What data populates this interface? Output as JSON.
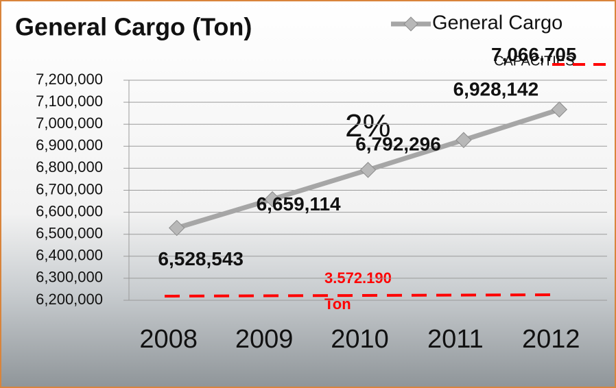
{
  "chart_data": {
    "type": "line",
    "title": "General Cargo (Ton)",
    "categories": [
      "2008",
      "2009",
      "2010",
      "2011",
      "2012"
    ],
    "series": [
      {
        "name": "General Cargo",
        "color": "#a6a6a6",
        "values": [
          6528543,
          6659114,
          6792296,
          6928142,
          7066705
        ],
        "value_labels": [
          "6,528,543",
          "6,659,114",
          "6,792,296",
          "6,928,142",
          "7,066,705"
        ]
      }
    ],
    "ylim": [
      6200000,
      7200000
    ],
    "yticks": [
      {
        "value": 6200000,
        "label": "6,200,000"
      },
      {
        "value": 6300000,
        "label": "6,300,000"
      },
      {
        "value": 6400000,
        "label": "6,400,000"
      },
      {
        "value": 6500000,
        "label": "6,500,000"
      },
      {
        "value": 6600000,
        "label": "6,600,000"
      },
      {
        "value": 6700000,
        "label": "6,700,000"
      },
      {
        "value": 6800000,
        "label": "6,800,000"
      },
      {
        "value": 6900000,
        "label": "6,900,000"
      },
      {
        "value": 7000000,
        "label": "7,000,000"
      },
      {
        "value": 7100000,
        "label": "7,100,000"
      },
      {
        "value": 7200000,
        "label": "7,200,000"
      }
    ],
    "grid": true,
    "annotations": [
      "2%"
    ],
    "capacity": {
      "name": "CAPACITIES",
      "label": "3.572.190",
      "unit": "Ton",
      "color": "#ff0000"
    }
  }
}
